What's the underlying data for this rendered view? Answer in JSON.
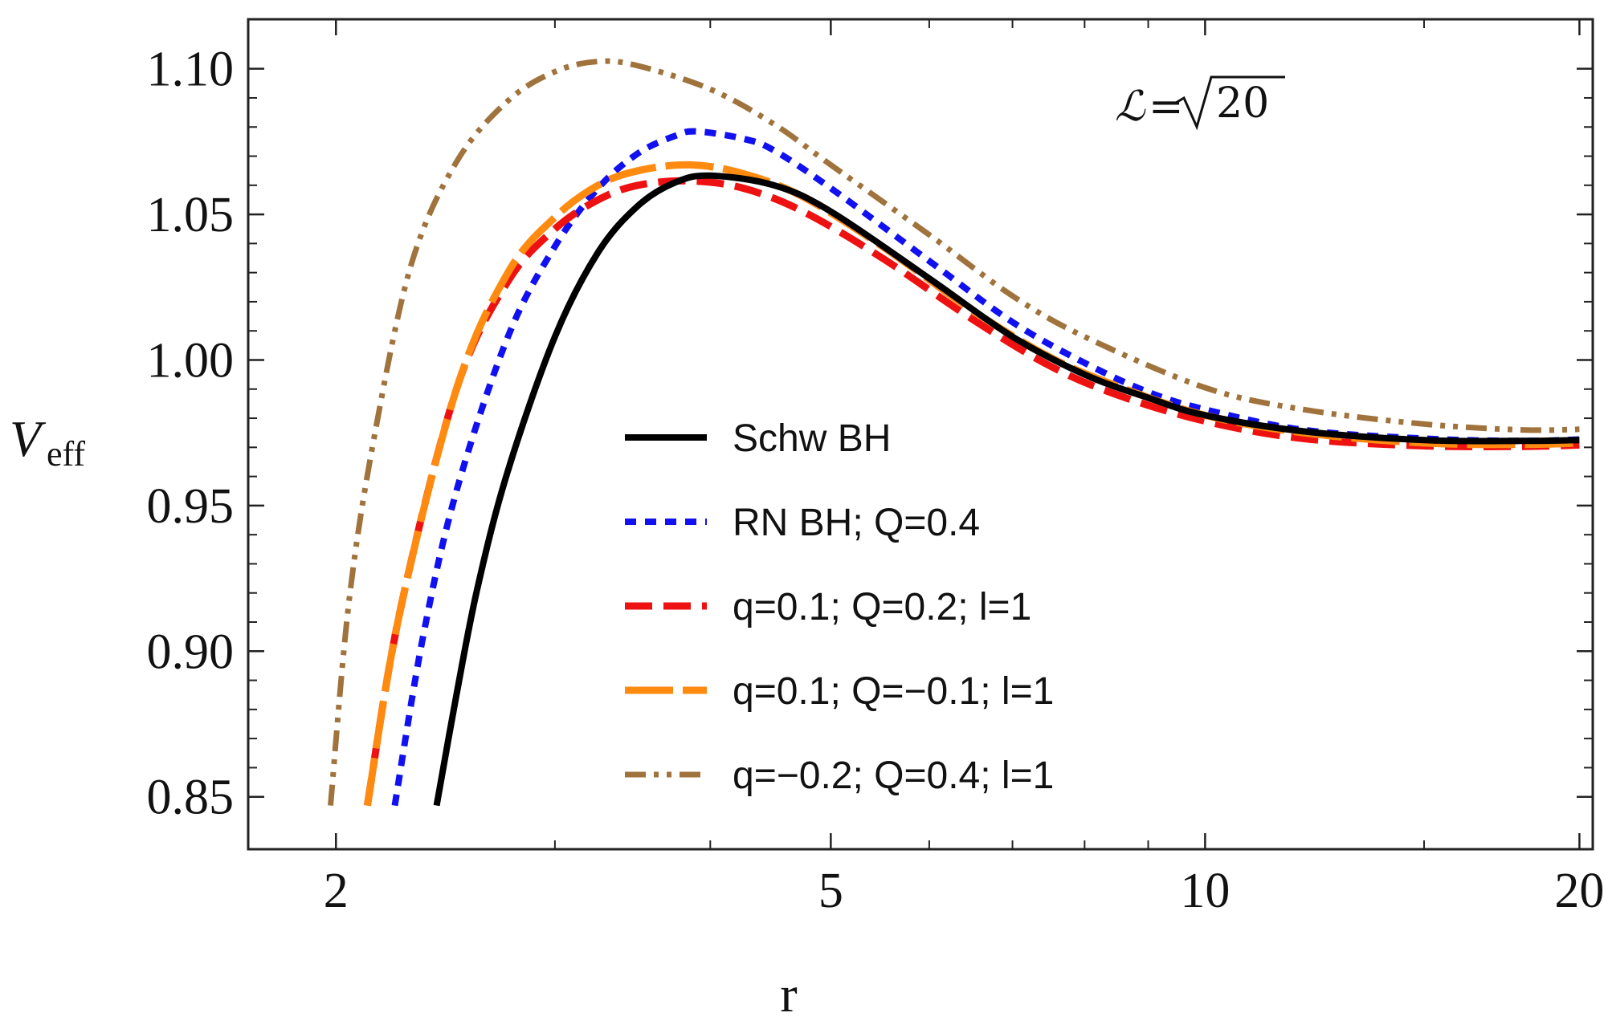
{
  "chart_data": {
    "type": "line",
    "x_scale": "log",
    "xlabel": "r",
    "ylabel": "V",
    "ylabel_sub": "eff",
    "xlim": [
      1.7,
      20.5
    ],
    "ylim": [
      0.832,
      1.117
    ],
    "xticks_major": [
      2,
      5,
      10,
      20
    ],
    "xticks_major_labels": [
      "2",
      "5",
      "10",
      "20"
    ],
    "xticks_minor": [
      3,
      4,
      6,
      7,
      8,
      9,
      15
    ],
    "yticks_major": [
      0.85,
      0.9,
      0.95,
      1.0,
      1.05,
      1.1
    ],
    "yticks_major_labels": [
      "0.85",
      "0.90",
      "0.95",
      "1.00",
      "1.05",
      "1.10"
    ],
    "annotation": {
      "lhs": "ℒ",
      "eq": "=",
      "radicand": "20"
    },
    "legend_position": "center-right",
    "series": [
      {
        "name": "Schw BH",
        "color": "#000000",
        "dash": "solid",
        "points": [
          [
            2.41,
            0.847
          ],
          [
            2.5,
            0.885
          ],
          [
            2.6,
            0.922
          ],
          [
            2.75,
            0.962
          ],
          [
            3.0,
            1.008
          ],
          [
            3.25,
            1.037
          ],
          [
            3.5,
            1.053
          ],
          [
            3.75,
            1.061
          ],
          [
            4.0,
            1.0633
          ],
          [
            4.5,
            1.06
          ],
          [
            5.0,
            1.051
          ],
          [
            6.0,
            1.028
          ],
          [
            7.0,
            1.008
          ],
          [
            8.0,
            0.995
          ],
          [
            9.0,
            0.987
          ],
          [
            10.0,
            0.981
          ],
          [
            12.0,
            0.9755
          ],
          [
            15.0,
            0.9725
          ],
          [
            18.0,
            0.9722
          ],
          [
            20.0,
            0.9725
          ]
        ]
      },
      {
        "name": "RN BH; Q=0.4",
        "color": "#1010f0",
        "dash": "short-dash",
        "points": [
          [
            2.23,
            0.847
          ],
          [
            2.35,
            0.905
          ],
          [
            2.5,
            0.955
          ],
          [
            2.75,
            1.008
          ],
          [
            3.0,
            1.039
          ],
          [
            3.25,
            1.059
          ],
          [
            3.5,
            1.071
          ],
          [
            3.75,
            1.077
          ],
          [
            3.9,
            1.0785
          ],
          [
            4.25,
            1.076
          ],
          [
            4.5,
            1.072
          ],
          [
            5.0,
            1.059
          ],
          [
            6.0,
            1.034
          ],
          [
            7.0,
            1.013
          ],
          [
            8.0,
            0.999
          ],
          [
            9.0,
            0.989
          ],
          [
            10.0,
            0.983
          ],
          [
            12.0,
            0.976
          ],
          [
            15.0,
            0.973
          ],
          [
            18.0,
            0.9722
          ],
          [
            20.0,
            0.9727
          ]
        ]
      },
      {
        "name": "q=0.1; Q=0.2; l=1",
        "color": "#ee1111",
        "dash": "long-dash",
        "points": [
          [
            2.12,
            0.847
          ],
          [
            2.25,
            0.913
          ],
          [
            2.5,
            0.99
          ],
          [
            2.75,
            1.027
          ],
          [
            3.0,
            1.045
          ],
          [
            3.25,
            1.055
          ],
          [
            3.5,
            1.06
          ],
          [
            3.85,
            1.0615
          ],
          [
            4.25,
            1.059
          ],
          [
            4.75,
            1.051
          ],
          [
            5.5,
            1.035
          ],
          [
            6.5,
            1.014
          ],
          [
            7.5,
            0.998
          ],
          [
            8.5,
            0.988
          ],
          [
            10.0,
            0.979
          ],
          [
            12.0,
            0.973
          ],
          [
            15.0,
            0.9705
          ],
          [
            18.0,
            0.9703
          ],
          [
            20.0,
            0.9708
          ]
        ]
      },
      {
        "name": "q=0.1; Q=−0.1; l=1",
        "color": "#ff8a10",
        "dash": "dash-long",
        "points": [
          [
            2.12,
            0.847
          ],
          [
            2.25,
            0.913
          ],
          [
            2.5,
            0.99
          ],
          [
            2.75,
            1.03
          ],
          [
            3.0,
            1.049
          ],
          [
            3.25,
            1.06
          ],
          [
            3.5,
            1.065
          ],
          [
            3.85,
            1.067
          ],
          [
            4.25,
            1.064
          ],
          [
            4.75,
            1.056
          ],
          [
            5.5,
            1.039
          ],
          [
            6.5,
            1.017
          ],
          [
            7.5,
            1.001
          ],
          [
            8.5,
            0.991
          ],
          [
            10.0,
            0.981
          ],
          [
            12.0,
            0.975
          ],
          [
            15.0,
            0.9715
          ],
          [
            18.0,
            0.971
          ],
          [
            20.0,
            0.9715
          ]
        ]
      },
      {
        "name": "q=−0.2; Q=0.4; l=1",
        "color": "#a0733d",
        "dash": "dash-dot-dot",
        "points": [
          [
            1.98,
            0.847
          ],
          [
            2.05,
            0.918
          ],
          [
            2.15,
            0.975
          ],
          [
            2.3,
            1.033
          ],
          [
            2.5,
            1.068
          ],
          [
            2.75,
            1.089
          ],
          [
            3.0,
            1.099
          ],
          [
            3.25,
            1.1025
          ],
          [
            3.5,
            1.101
          ],
          [
            4.0,
            1.093
          ],
          [
            4.5,
            1.081
          ],
          [
            5.0,
            1.067
          ],
          [
            6.0,
            1.043
          ],
          [
            7.0,
            1.022
          ],
          [
            8.0,
            1.008
          ],
          [
            10.0,
            0.9905
          ],
          [
            12.0,
            0.983
          ],
          [
            15.0,
            0.978
          ],
          [
            18.0,
            0.976
          ],
          [
            20.0,
            0.9762
          ]
        ]
      }
    ]
  }
}
